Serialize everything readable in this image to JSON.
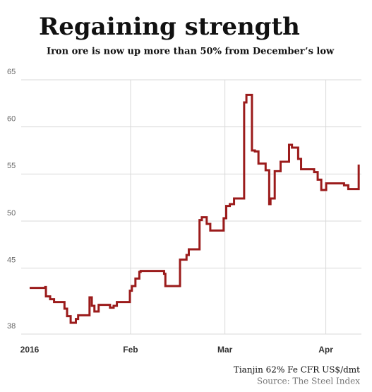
{
  "chart_data": {
    "type": "line",
    "step": "post",
    "title": "Regaining strength",
    "subtitle": "Iron ore is now up more than 50% from December’s low",
    "y_label": "Tianjin 62% Fe CFR US$/dmt",
    "source": "Source: The Steel Index",
    "xlim": [
      0,
      101.5
    ],
    "xticks": [
      {
        "value": 0,
        "label": "2016"
      },
      {
        "value": 31,
        "label": "Feb"
      },
      {
        "value": 60,
        "label": "Mar"
      },
      {
        "value": 91,
        "label": "Apr"
      }
    ],
    "ylim": [
      38,
      65
    ],
    "yticks": [
      38,
      45,
      50,
      55,
      60,
      65
    ],
    "grid": true,
    "series": [
      {
        "color": "#9b1b1b",
        "x": [
          0,
          4.8,
          5.0,
          6.3,
          7.5,
          10.7,
          11.5,
          12.6,
          14.2,
          14.9,
          18.4,
          19.1,
          19.9,
          21.2,
          24.7,
          25.8,
          26.8,
          30.8,
          31.4,
          32.5,
          33.7,
          34.1,
          41.3,
          41.7,
          46.2,
          48.2,
          48.9,
          52.2,
          52.9,
          54.4,
          55.5,
          59.6,
          60.4,
          61.5,
          62.8,
          65.9,
          66.6,
          68.3,
          69.2,
          70.3,
          72.5,
          73.6,
          74.0,
          75.3,
          77.1,
          79.7,
          80.6,
          82.5,
          83.4,
          87.4,
          88.5,
          89.6,
          91.1,
          96.6,
          97.9,
          101.1
        ],
        "values": [
          42.9,
          43.0,
          42.0,
          41.7,
          41.4,
          40.7,
          39.9,
          39.2,
          39.6,
          40.0,
          41.9,
          41.0,
          40.4,
          41.1,
          40.8,
          41.0,
          41.4,
          42.6,
          43.1,
          43.9,
          44.6,
          44.7,
          44.4,
          43.1,
          45.9,
          46.4,
          47.0,
          50.1,
          50.4,
          49.7,
          49.0,
          50.3,
          51.6,
          51.8,
          52.4,
          62.6,
          63.4,
          57.5,
          57.4,
          56.1,
          55.4,
          51.8,
          52.4,
          55.3,
          56.3,
          58.1,
          57.8,
          56.6,
          55.5,
          55.2,
          54.4,
          53.3,
          54.0,
          53.8,
          53.4,
          56.0
        ]
      }
    ]
  }
}
